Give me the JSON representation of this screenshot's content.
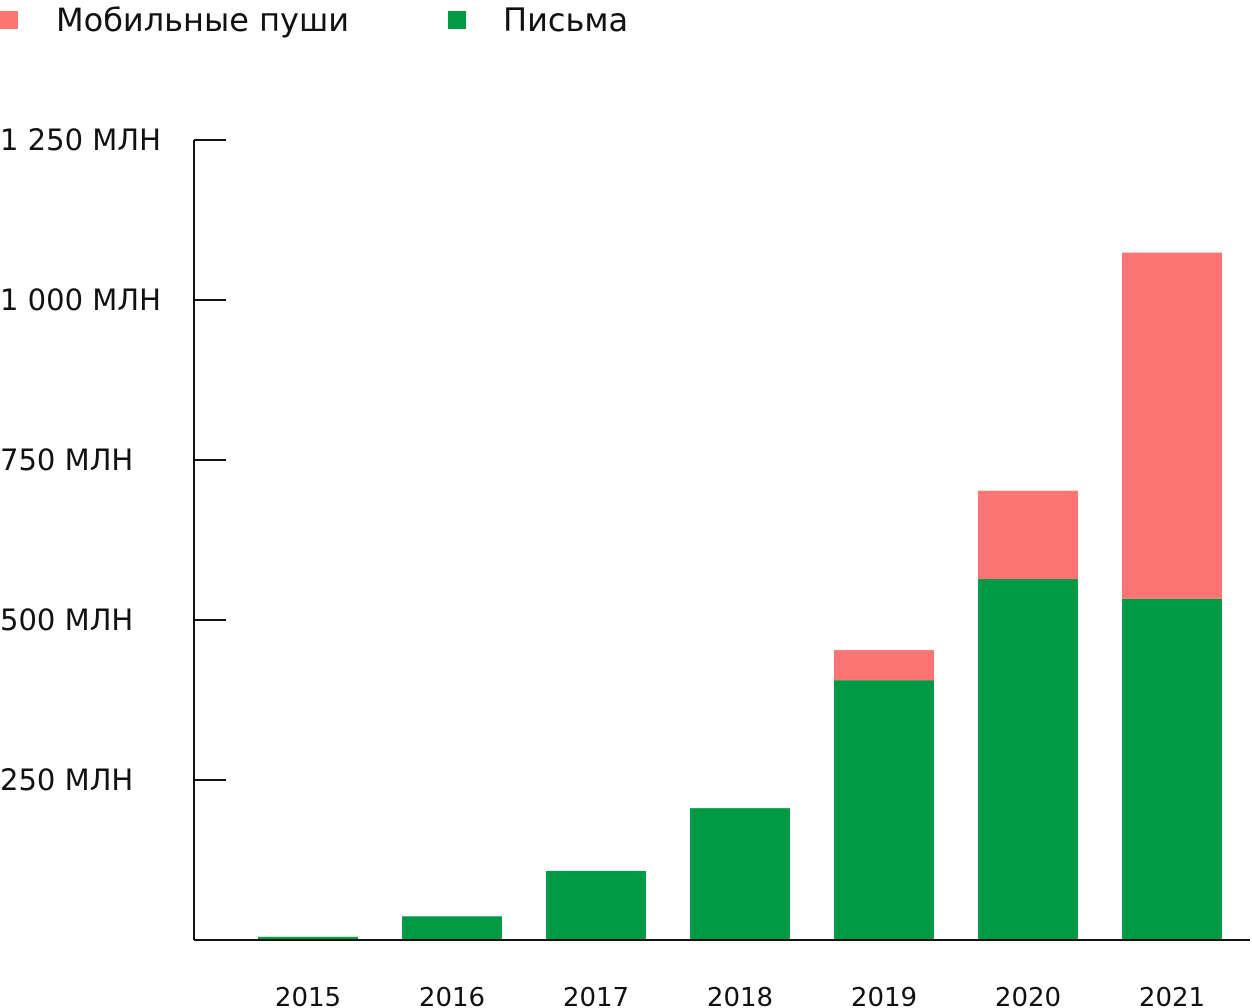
{
  "chart_data": {
    "type": "bar",
    "stacked": true,
    "title": "",
    "xlabel": "",
    "ylabel": "",
    "categories": [
      "2015",
      "2016",
      "2017",
      "2018",
      "2019",
      "2020",
      "2021"
    ],
    "series": [
      {
        "name": "Письма",
        "color": "#009944",
        "values": [
          5,
          37,
          108,
          206,
          406,
          564,
          533
        ]
      },
      {
        "name": "Мобильные пуши",
        "color": "#ff7573",
        "values": [
          0,
          0,
          0,
          0,
          47,
          138,
          541
        ]
      }
    ],
    "ylim": [
      0,
      1250
    ],
    "yticks": [
      {
        "value": 250,
        "label": "250 МЛН"
      },
      {
        "value": 500,
        "label": "500 МЛН"
      },
      {
        "value": 750,
        "label": "750 МЛН"
      },
      {
        "value": 1000,
        "label": "1 000 МЛН"
      },
      {
        "value": 1250,
        "label": "1 250 МЛН"
      }
    ],
    "grid": false,
    "legend": {
      "placement": "top-left",
      "order": [
        "Мобильные пуши",
        "Письма"
      ]
    }
  }
}
